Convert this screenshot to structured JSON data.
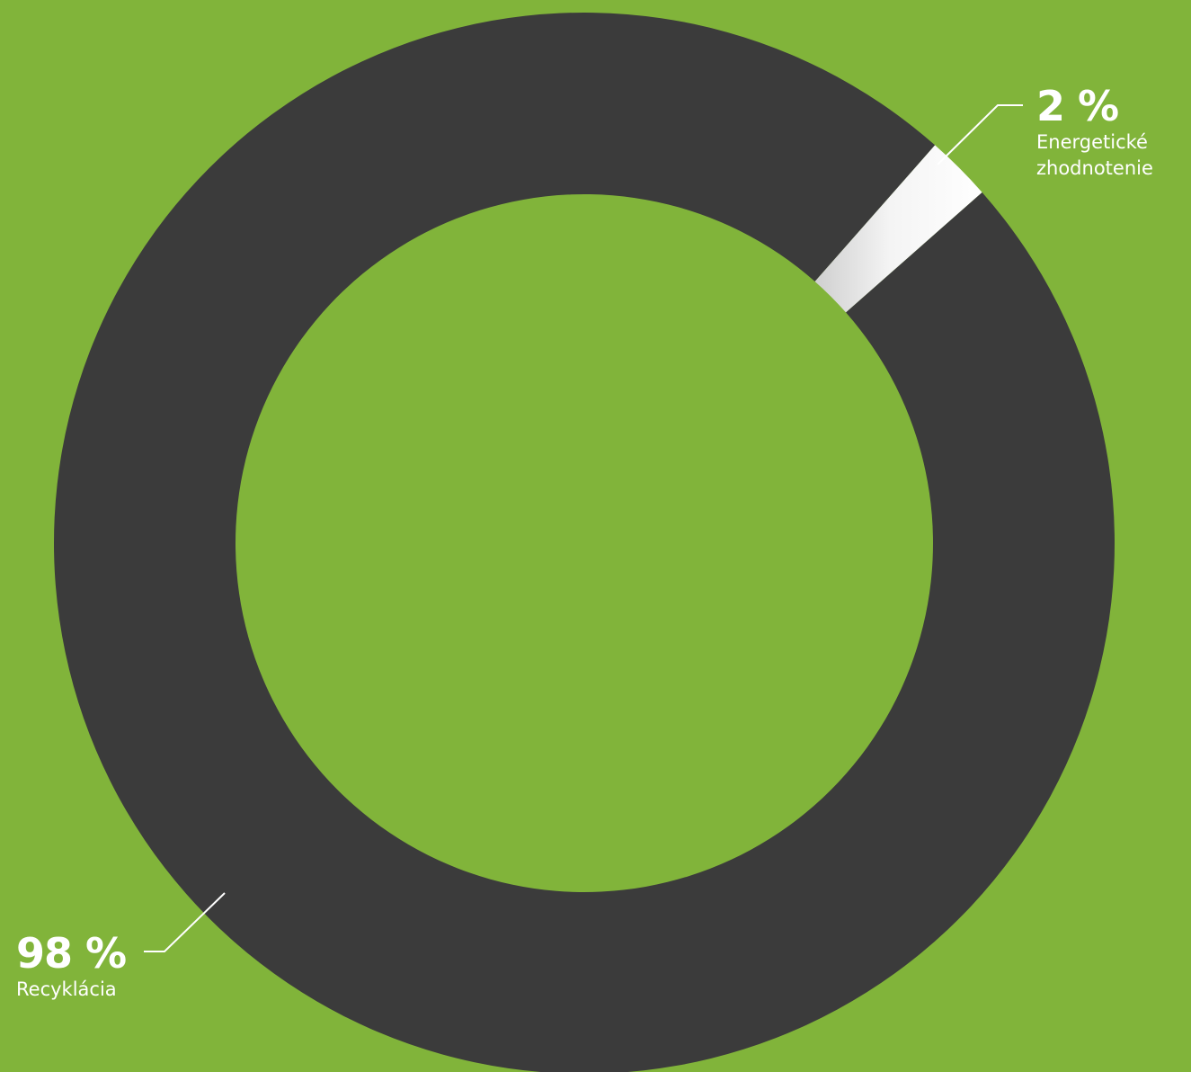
{
  "colors": {
    "background": "#81b43a",
    "ring": "#3b3b3b",
    "highlight_segment": "#f2f2f2",
    "text": "#ffffff"
  },
  "chart_data": {
    "type": "pie",
    "donut": true,
    "title": "",
    "slices": [
      {
        "label": "Recyklácia",
        "value": 98,
        "value_label": "98 %",
        "color": "#3b3b3b"
      },
      {
        "label": "Energetické\nzhodnotenie",
        "value": 2,
        "value_label": "2 %",
        "color": "#f2f2f2"
      }
    ]
  }
}
